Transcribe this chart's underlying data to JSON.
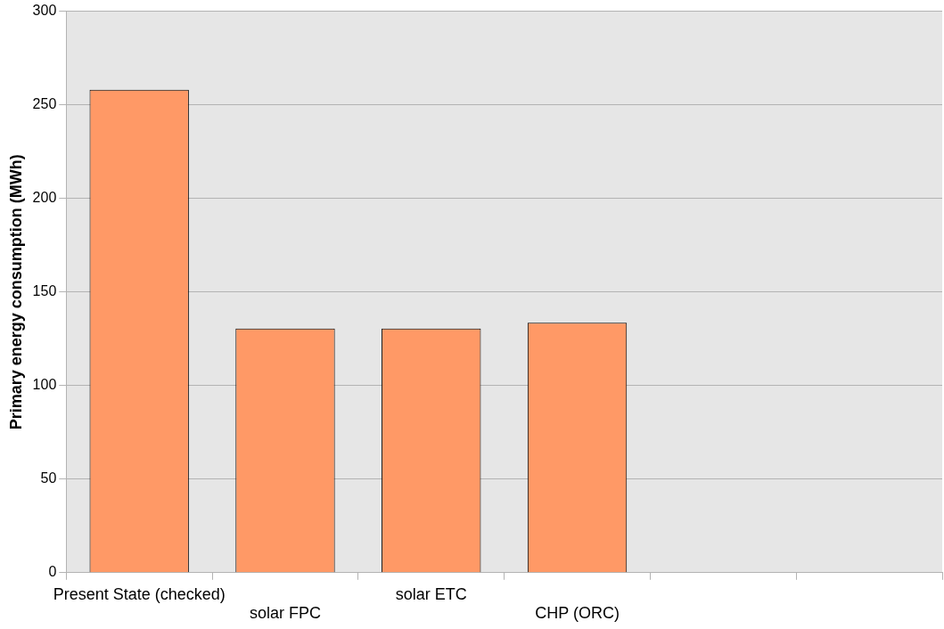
{
  "chart_data": {
    "type": "bar",
    "ylabel": "Primary energy consumption (MWh)",
    "categories": [
      "Present State (checked)",
      "solar FPC",
      "solar ETC",
      "CHP (ORC)",
      null,
      null
    ],
    "values": [
      258,
      130.5,
      130.5,
      133.5,
      null,
      null
    ],
    "color": "#ff9966",
    "ylim": [
      0,
      300
    ],
    "yticks": [
      0,
      50,
      100,
      150,
      200,
      250,
      300
    ],
    "grid": "y",
    "legend": false
  }
}
